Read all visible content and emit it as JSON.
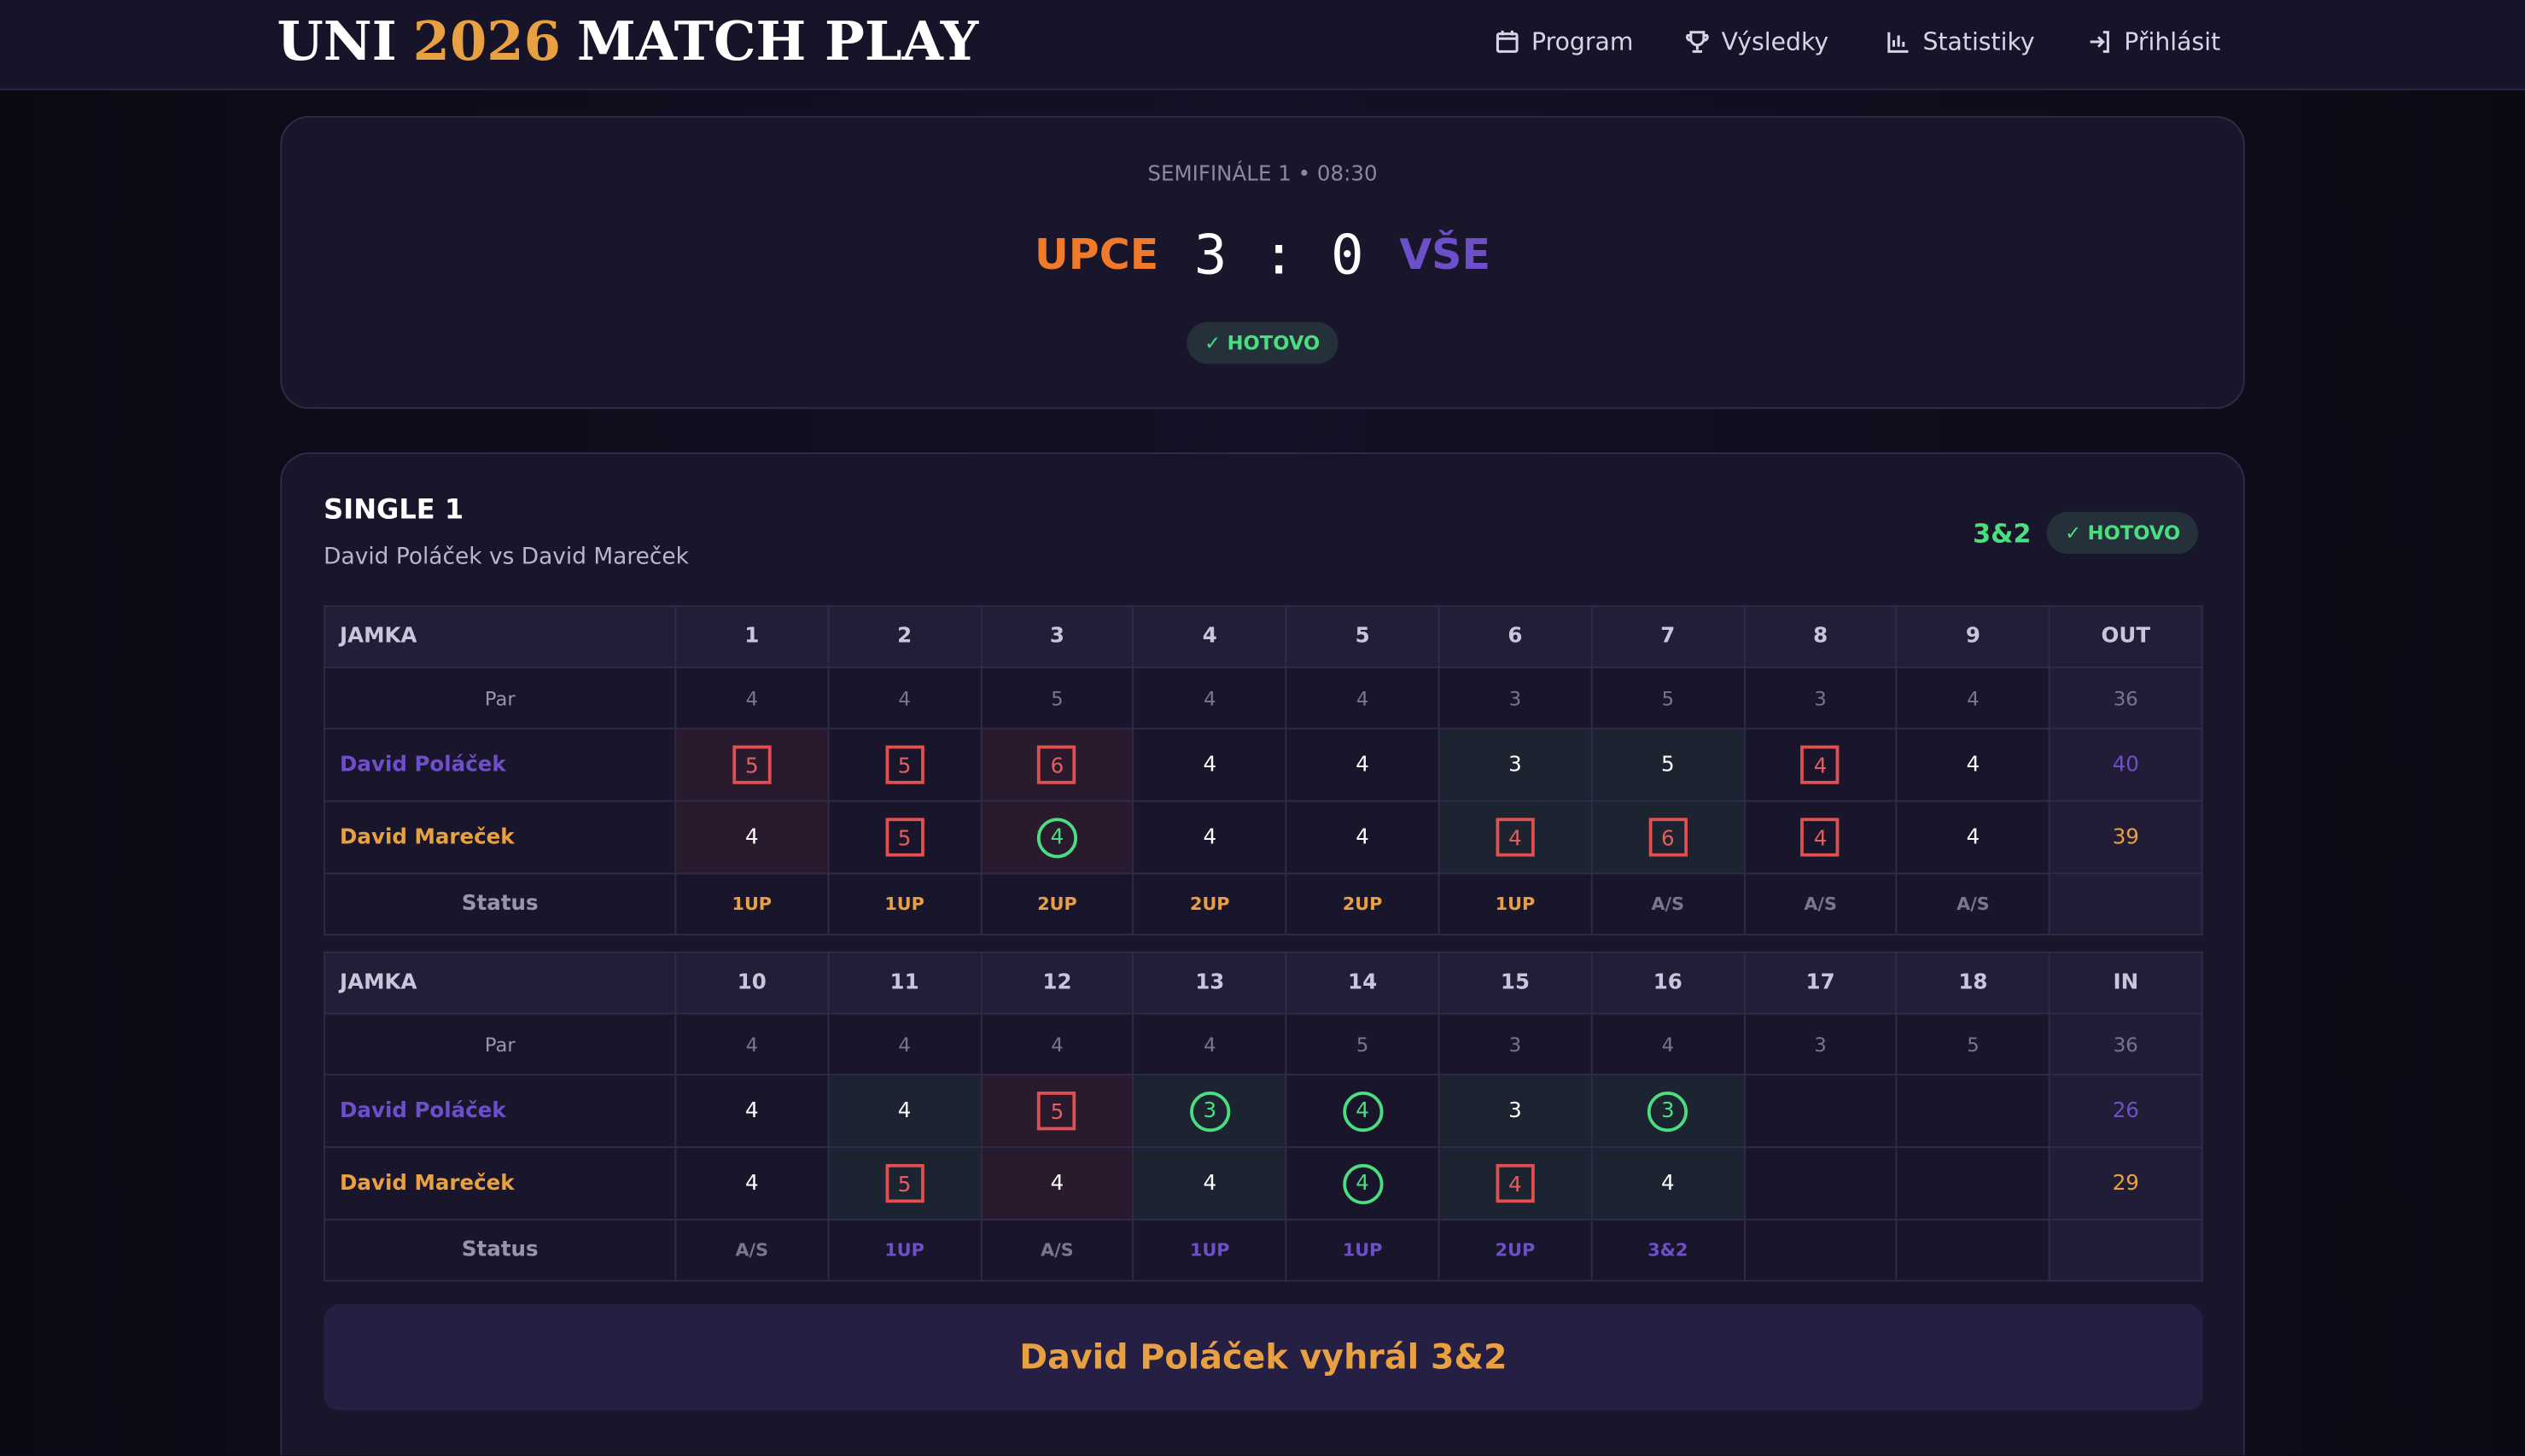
{
  "header": {
    "title": [
      "UNI",
      "2026",
      "MATCH PLAY"
    ],
    "nav": [
      "Program",
      "Výsledky",
      "Statistiky",
      "Přihlásit"
    ]
  },
  "match": {
    "label": "SEMIFINÁLE 1 • 08:30",
    "home": "UPCE",
    "home_score": 3,
    "away_score": 0,
    "away": "VŠE",
    "status": "HOTOVO"
  },
  "single": {
    "title": "SINGLE 1",
    "players_line": "David Poláček vs David Mareček",
    "result": "3&2",
    "status": "HOTOVO",
    "tables": [
      {
        "header": "JAMKA",
        "holes": [
          1,
          2,
          3,
          4,
          5,
          6,
          7,
          8,
          9
        ],
        "total_label": "OUT",
        "par_label": "Par",
        "par": [
          4,
          4,
          5,
          4,
          4,
          3,
          5,
          3,
          4
        ],
        "par_total": 36,
        "rows": [
          {
            "player": "David Poláček",
            "scores": [
              5,
              5,
              6,
              4,
              4,
              3,
              5,
              4,
              4
            ],
            "total": 40
          },
          {
            "player": "David Mareček",
            "scores": [
              4,
              5,
              4,
              4,
              4,
              4,
              6,
              4,
              4
            ],
            "total": 39
          }
        ],
        "status_label": "Status",
        "status": [
          "1UP",
          "1UP",
          "2UP",
          "2UP",
          "2UP",
          "1UP",
          "A/S",
          "A/S",
          "A/S"
        ]
      },
      {
        "header": "JAMKA",
        "holes": [
          10,
          11,
          12,
          13,
          14,
          15,
          16,
          17,
          18
        ],
        "total_label": "IN",
        "par_label": "Par",
        "par": [
          4,
          4,
          4,
          4,
          5,
          3,
          4,
          3,
          5
        ],
        "par_total": 36,
        "rows": [
          {
            "player": "David Poláček",
            "scores": [
              4,
              4,
              5,
              3,
              4,
              3,
              3,
              null,
              null
            ],
            "total": 26
          },
          {
            "player": "David Mareček",
            "scores": [
              4,
              5,
              4,
              4,
              4,
              4,
              4,
              null,
              null
            ],
            "total": 29
          }
        ],
        "status_label": "Status",
        "status": [
          "A/S",
          "1UP",
          "A/S",
          "1UP",
          "1UP",
          "2UP",
          "3&2",
          null,
          null
        ]
      }
    ],
    "summary": "David Poláček vyhrál 3&2"
  }
}
